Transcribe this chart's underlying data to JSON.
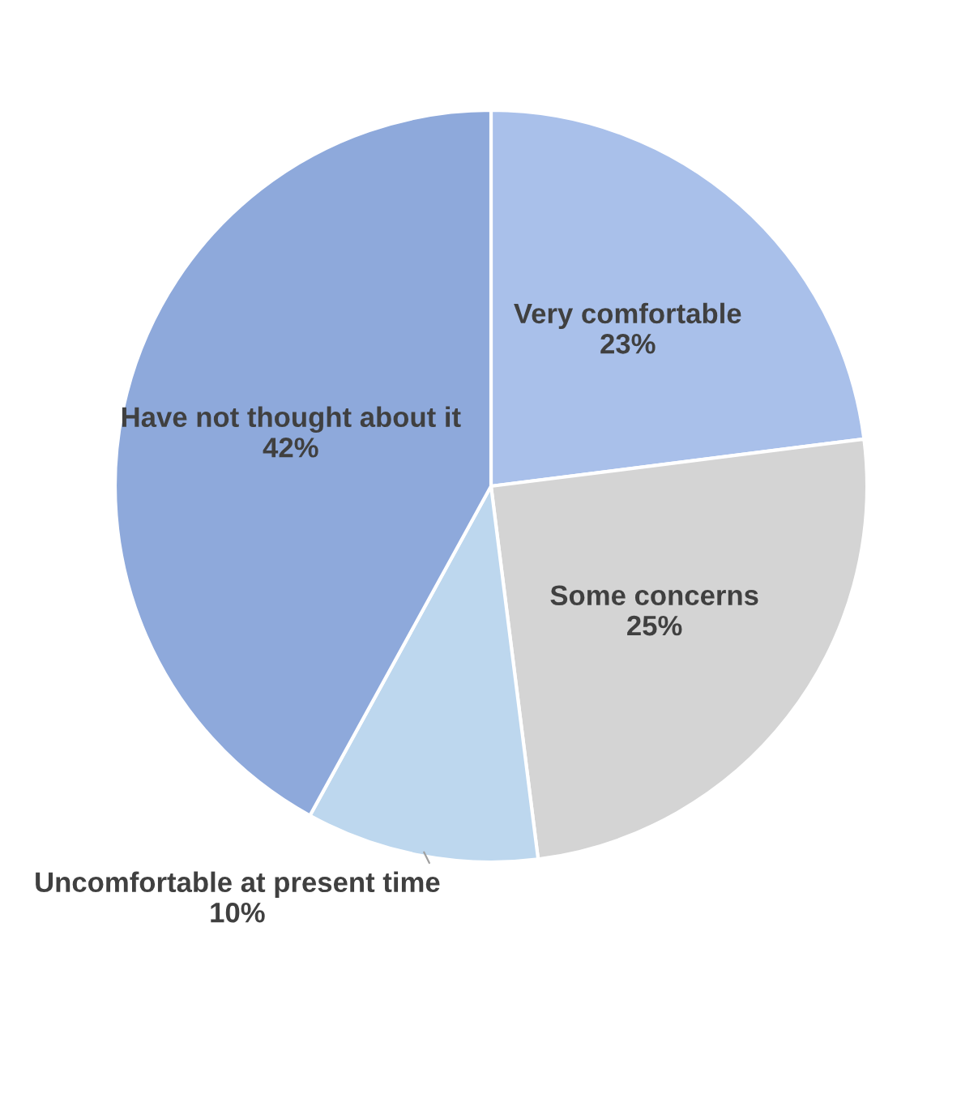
{
  "chart_data": {
    "type": "pie",
    "categories": [
      "Very comfortable",
      "Some concerns",
      "Uncomfortable at present time",
      "Have not thought about it"
    ],
    "values": [
      23,
      25,
      10,
      42
    ],
    "colors": [
      "#a9c0ea",
      "#d4d4d4",
      "#bdd7ee",
      "#8ea9db"
    ],
    "value_labels": [
      "23%",
      "25%",
      "10%",
      "42%"
    ],
    "legend": false
  }
}
